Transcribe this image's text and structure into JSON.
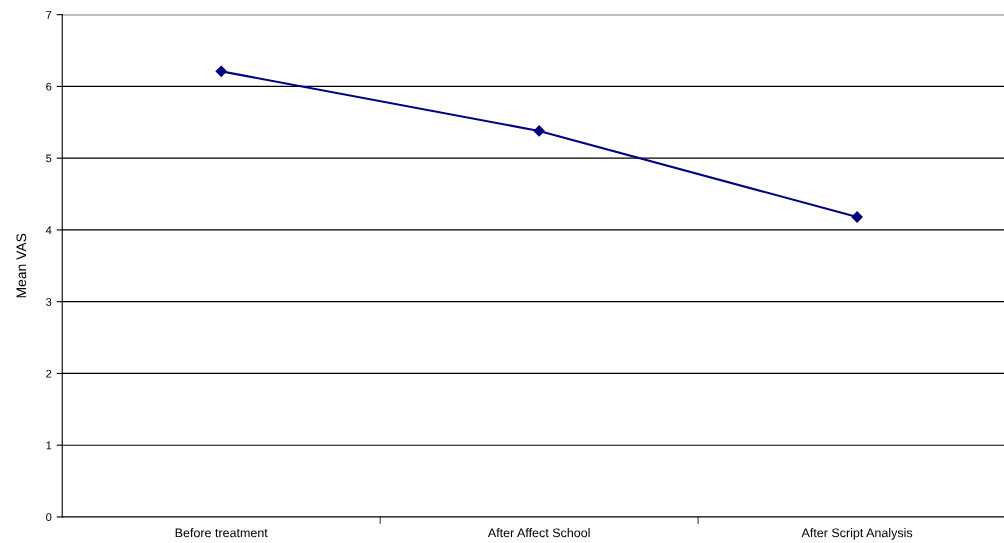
{
  "chart_data": {
    "type": "line",
    "ylabel": "Mean VAS",
    "categories": [
      "Before treatment",
      "After Affect School",
      "After Script Analysis"
    ],
    "series": [
      {
        "color": "#000080",
        "values": [
          6.21,
          5.38,
          4.18
        ]
      }
    ],
    "ylim": [
      0,
      7
    ],
    "yticks": [
      0,
      1,
      2,
      3,
      4,
      5,
      6,
      7
    ],
    "grid": "y",
    "marker": "diamond",
    "line_style": "solid"
  }
}
